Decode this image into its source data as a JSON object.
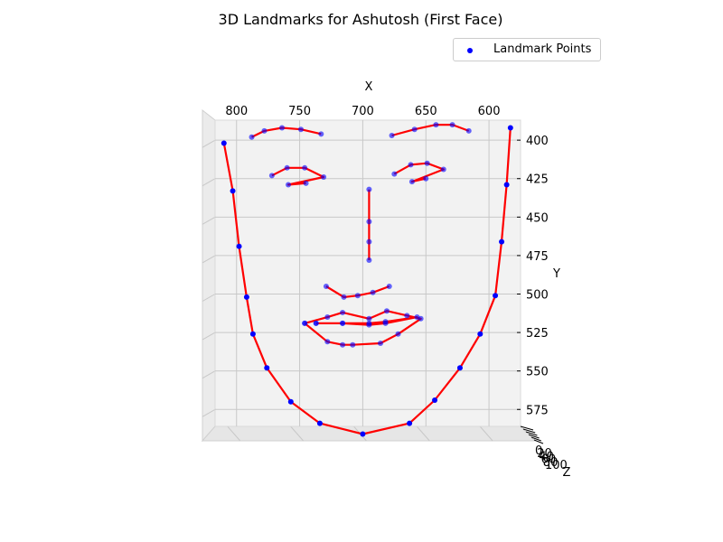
{
  "chart_data": {
    "type": "scatter",
    "title": "3D Landmarks for Ashutosh (First Face)",
    "xlabel": "X",
    "ylabel": "Y",
    "zlabel": "Z",
    "x_ticks": [
      "800",
      "750",
      "700",
      "650",
      "600"
    ],
    "y_ticks": [
      "400",
      "425",
      "450",
      "475",
      "500",
      "525",
      "550",
      "575"
    ],
    "z_ticks": [
      "0",
      "20",
      "40",
      "60",
      "80",
      "100"
    ],
    "xlim": [
      817,
      575
    ],
    "ylim": [
      387,
      586
    ],
    "x_axis_position": "top",
    "x_axis_inverted": true,
    "y_axis_position": "right",
    "y_axis_inverted": true,
    "grid": true,
    "legend": {
      "position": "top-right",
      "entries": [
        "Landmark Points"
      ]
    },
    "colors": {
      "points": "#0000ff",
      "edges": "#ff0000",
      "pane": "#f2f2f2",
      "grid": "#c8c8c8"
    },
    "series": [
      {
        "name": "Landmark Points",
        "role": "jaw",
        "x": [
          810,
          803,
          798,
          792,
          787,
          776,
          757,
          734,
          700,
          663,
          643,
          623,
          607,
          595,
          590,
          586,
          583
        ],
        "y": [
          402,
          433,
          469,
          502,
          526,
          548,
          570,
          584,
          591,
          584,
          569,
          548,
          526,
          501,
          466,
          429,
          392
        ]
      },
      {
        "name": "Landmark Points",
        "role": "right-eyebrow",
        "x": [
          788,
          778,
          764,
          749,
          733
        ],
        "y": [
          398,
          394,
          392,
          393,
          396
        ]
      },
      {
        "name": "Landmark Points",
        "role": "left-eyebrow",
        "x": [
          677,
          659,
          642,
          629,
          616
        ],
        "y": [
          397,
          393,
          390,
          390,
          394
        ]
      },
      {
        "name": "Landmark Points",
        "role": "nose-bridge",
        "x": [
          695,
          695,
          695,
          695
        ],
        "y": [
          432,
          453,
          466,
          478
        ]
      },
      {
        "name": "Landmark Points",
        "role": "nose-bottom",
        "x": [
          729,
          715,
          704,
          692,
          679
        ],
        "y": [
          495,
          502,
          501,
          499,
          495
        ]
      },
      {
        "name": "Landmark Points",
        "role": "right-eye",
        "x": [
          772,
          760,
          746,
          731,
          759,
          745
        ],
        "y": [
          423,
          418,
          418,
          424,
          429,
          428
        ]
      },
      {
        "name": "Landmark Points",
        "role": "left-eye",
        "x": [
          675,
          662,
          649,
          636,
          661,
          650
        ],
        "y": [
          422,
          416,
          415,
          419,
          427,
          425
        ]
      },
      {
        "name": "Landmark Points",
        "role": "outer-lip",
        "x": [
          746,
          728,
          716,
          695,
          681,
          665,
          654,
          672,
          686,
          708,
          716,
          728,
          746
        ],
        "y": [
          519,
          515,
          512,
          516,
          511,
          514,
          516,
          526,
          532,
          533,
          533,
          531,
          519
        ]
      },
      {
        "name": "Landmark Points",
        "role": "inner-lip",
        "x": [
          737,
          716,
          695,
          682,
          657,
          682,
          695,
          716,
          737
        ],
        "y": [
          519,
          519,
          520,
          519,
          515,
          518,
          519,
          519,
          519
        ]
      }
    ]
  }
}
